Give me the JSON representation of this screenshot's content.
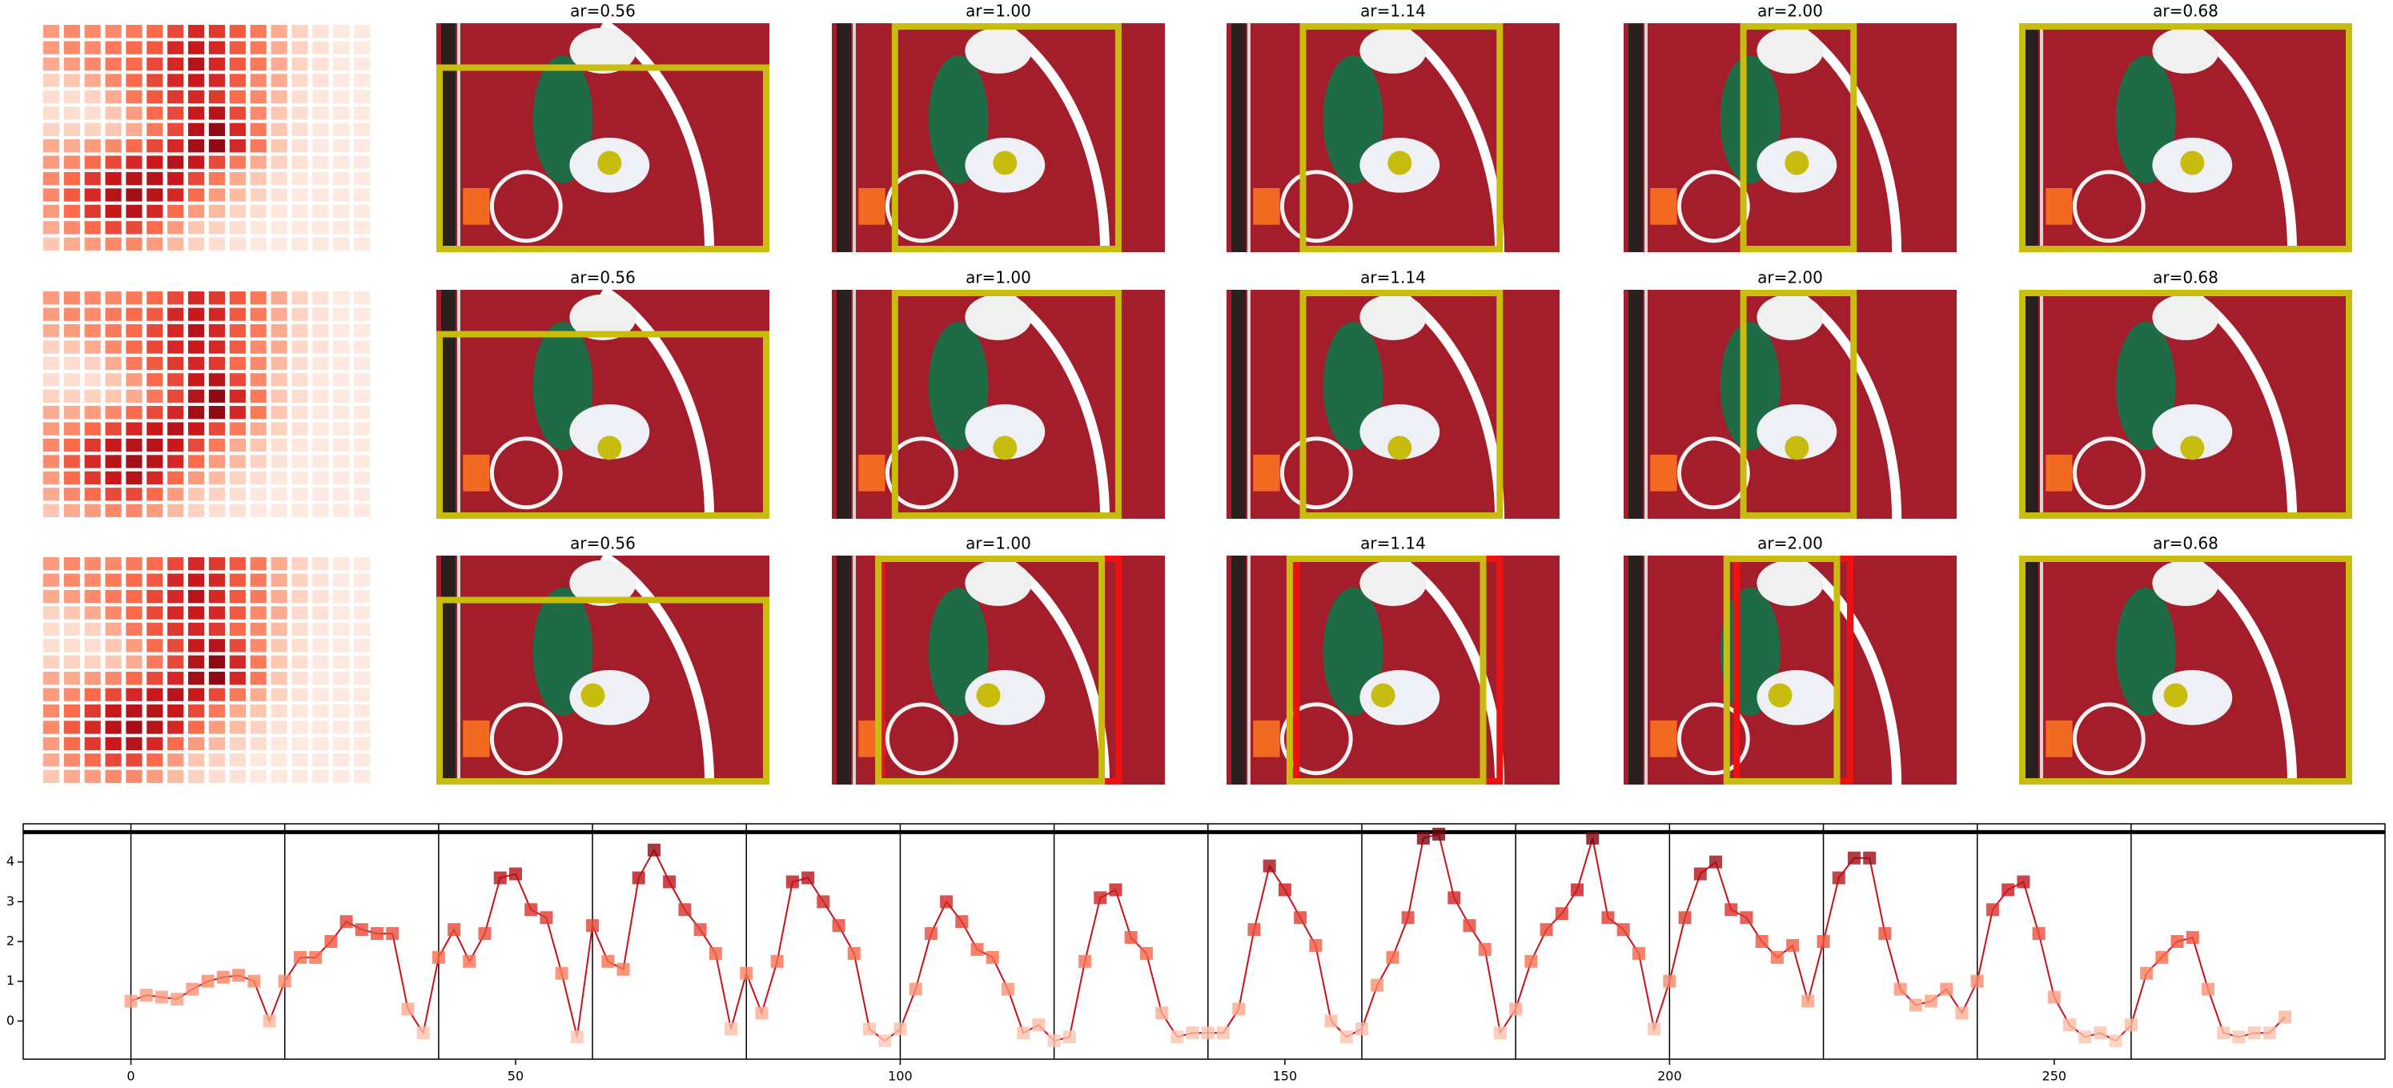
{
  "grid": {
    "heatmap": [
      [
        0.35,
        0.4,
        0.4,
        0.4,
        0.45,
        0.5,
        0.6,
        0.7,
        0.65,
        0.55,
        0.45,
        0.3,
        0.15,
        0.08,
        0.05,
        0.05
      ],
      [
        0.35,
        0.4,
        0.4,
        0.45,
        0.5,
        0.55,
        0.7,
        0.75,
        0.7,
        0.55,
        0.45,
        0.3,
        0.15,
        0.08,
        0.05,
        0.05
      ],
      [
        0.3,
        0.35,
        0.4,
        0.45,
        0.5,
        0.6,
        0.7,
        0.8,
        0.7,
        0.55,
        0.45,
        0.3,
        0.15,
        0.08,
        0.05,
        0.05
      ],
      [
        0.15,
        0.2,
        0.3,
        0.4,
        0.5,
        0.6,
        0.7,
        0.75,
        0.7,
        0.55,
        0.4,
        0.3,
        0.12,
        0.08,
        0.05,
        0.05
      ],
      [
        0.1,
        0.1,
        0.15,
        0.3,
        0.45,
        0.55,
        0.65,
        0.7,
        0.65,
        0.5,
        0.4,
        0.25,
        0.1,
        0.06,
        0.05,
        0.05
      ],
      [
        0.1,
        0.1,
        0.1,
        0.2,
        0.35,
        0.5,
        0.6,
        0.75,
        0.8,
        0.6,
        0.4,
        0.2,
        0.1,
        0.06,
        0.05,
        0.05
      ],
      [
        0.15,
        0.15,
        0.15,
        0.2,
        0.3,
        0.45,
        0.6,
        0.8,
        0.9,
        0.7,
        0.45,
        0.2,
        0.1,
        0.06,
        0.05,
        0.05
      ],
      [
        0.3,
        0.3,
        0.35,
        0.4,
        0.5,
        0.6,
        0.7,
        0.85,
        0.9,
        0.7,
        0.45,
        0.2,
        0.08,
        0.05,
        0.05,
        0.05
      ],
      [
        0.35,
        0.4,
        0.5,
        0.6,
        0.7,
        0.75,
        0.8,
        0.75,
        0.6,
        0.45,
        0.3,
        0.15,
        0.08,
        0.05,
        0.05,
        0.05
      ],
      [
        0.4,
        0.5,
        0.65,
        0.75,
        0.8,
        0.8,
        0.75,
        0.6,
        0.45,
        0.3,
        0.2,
        0.1,
        0.06,
        0.05,
        0.05,
        0.05
      ],
      [
        0.4,
        0.55,
        0.7,
        0.8,
        0.85,
        0.8,
        0.7,
        0.5,
        0.35,
        0.25,
        0.15,
        0.08,
        0.05,
        0.05,
        0.05,
        0.05
      ],
      [
        0.35,
        0.5,
        0.65,
        0.75,
        0.8,
        0.7,
        0.5,
        0.35,
        0.25,
        0.15,
        0.1,
        0.06,
        0.05,
        0.05,
        0.05,
        0.05
      ],
      [
        0.3,
        0.4,
        0.5,
        0.6,
        0.6,
        0.5,
        0.35,
        0.2,
        0.15,
        0.1,
        0.06,
        0.05,
        0.05,
        0.05,
        0.05,
        0.05
      ],
      [
        0.2,
        0.3,
        0.35,
        0.4,
        0.4,
        0.35,
        0.25,
        0.15,
        0.1,
        0.08,
        0.05,
        0.05,
        0.05,
        0.05,
        0.05,
        0.05
      ]
    ],
    "rows": [
      {
        "titles": [
          "ar=0.56",
          "ar=1.00",
          "ar=1.14",
          "ar=2.00",
          "ar=0.68"
        ]
      },
      {
        "titles": [
          "ar=0.56",
          "ar=1.00",
          "ar=1.14",
          "ar=2.00",
          "ar=0.68"
        ]
      },
      {
        "titles": [
          "ar=0.56",
          "ar=1.00",
          "ar=1.14",
          "ar=2.00",
          "ar=0.68"
        ]
      }
    ]
  },
  "chart_data": {
    "type": "line",
    "color": "#c8101a",
    "marker_colormap": "Reds",
    "x": [
      0,
      2,
      4,
      6,
      8,
      10,
      12,
      14,
      16,
      18,
      20,
      22,
      24,
      26,
      28,
      30,
      32,
      34,
      36,
      38,
      40,
      42,
      44,
      46,
      48,
      50,
      52,
      54,
      56,
      58,
      60,
      62,
      64,
      66,
      68,
      70,
      72,
      74,
      76,
      78,
      80,
      82,
      84,
      86,
      88,
      90,
      92,
      94,
      96,
      98,
      100,
      102,
      104,
      106,
      108,
      110,
      112,
      114,
      116,
      118,
      120,
      122,
      124,
      126,
      128,
      130,
      132,
      134,
      136,
      138,
      140,
      142,
      144,
      146,
      148,
      150,
      152,
      154,
      156,
      158,
      160,
      162,
      164,
      166,
      168,
      170,
      172,
      174,
      176,
      178,
      180,
      182,
      184,
      186,
      188,
      190,
      192,
      194,
      196,
      198,
      200,
      202,
      204,
      206,
      208,
      210,
      212,
      214,
      216,
      218,
      220,
      222,
      224,
      226,
      228,
      230,
      232,
      234,
      236,
      238,
      240,
      242,
      244,
      246,
      248,
      250,
      252,
      254,
      256,
      258,
      260,
      262,
      264,
      266,
      268,
      270,
      272,
      274,
      276,
      278,
      280
    ],
    "values": [
      0.5,
      0.65,
      0.6,
      0.55,
      0.8,
      1.0,
      1.1,
      1.15,
      1.0,
      0.0,
      1.0,
      1.6,
      1.6,
      2.0,
      2.5,
      2.3,
      2.2,
      2.2,
      0.3,
      -0.3,
      1.6,
      2.3,
      1.5,
      2.2,
      3.6,
      3.7,
      2.8,
      2.6,
      1.2,
      -0.4,
      2.4,
      1.5,
      1.3,
      3.6,
      4.3,
      3.5,
      2.8,
      2.3,
      1.7,
      -0.2,
      1.2,
      0.2,
      1.5,
      3.5,
      3.6,
      3.0,
      2.4,
      1.7,
      -0.2,
      -0.5,
      -0.2,
      0.8,
      2.2,
      3.0,
      2.5,
      1.8,
      1.6,
      0.8,
      -0.3,
      -0.1,
      -0.5,
      -0.4,
      1.5,
      3.1,
      3.3,
      2.1,
      1.7,
      0.2,
      -0.4,
      -0.3,
      -0.3,
      -0.3,
      0.3,
      2.3,
      3.9,
      3.3,
      2.6,
      1.9,
      0.0,
      -0.4,
      -0.2,
      0.9,
      1.6,
      2.6,
      4.6,
      4.7,
      3.1,
      2.4,
      1.8,
      -0.3,
      0.3,
      1.5,
      2.3,
      2.7,
      3.3,
      4.6,
      2.6,
      2.3,
      1.7,
      -0.2,
      1.0,
      2.6,
      3.7,
      4.0,
      2.8,
      2.6,
      2.0,
      1.6,
      1.9,
      0.5,
      2.0,
      3.6,
      4.1,
      4.1,
      2.2,
      0.8,
      0.4,
      0.5,
      0.8,
      0.2,
      1.0,
      2.8,
      3.3,
      3.5,
      2.2,
      0.6,
      -0.1,
      -0.4,
      -0.3,
      -0.5,
      -0.1,
      1.2,
      1.6,
      2.0,
      2.1,
      0.8,
      -0.3,
      -0.4,
      -0.3,
      -0.3,
      0.1
    ],
    "xlim": [
      -14,
      293
    ],
    "ylim": [
      -0.96,
      4.96
    ],
    "xticks": [
      0,
      50,
      100,
      150,
      200,
      250
    ],
    "yticks": [
      0,
      1,
      2,
      3,
      4
    ],
    "vlines": [
      0,
      20,
      40,
      60,
      80,
      100,
      120,
      140,
      160,
      180,
      200,
      220,
      240,
      260
    ],
    "hline": 4.75
  }
}
